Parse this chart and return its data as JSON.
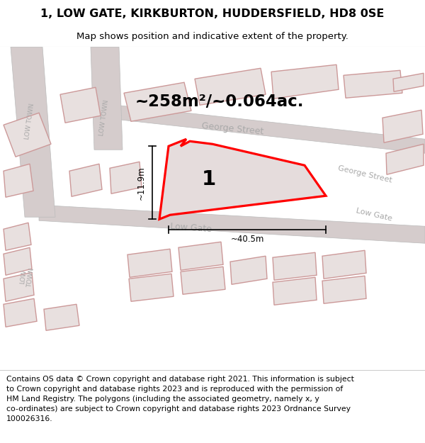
{
  "title": "1, LOW GATE, KIRKBURTON, HUDDERSFIELD, HD8 0SE",
  "subtitle": "Map shows position and indicative extent of the property.",
  "footer_line1": "Contains OS data © Crown copyright and database right 2021. This information is subject",
  "footer_line2": "to Crown copyright and database rights 2023 and is reproduced with the permission of",
  "footer_line3": "HM Land Registry. The polygons (including the associated geometry, namely x, y",
  "footer_line4": "co-ordinates) are subject to Crown copyright and database rights 2023 Ordnance Survey",
  "footer_line5": "100026316.",
  "area_label": "~258m²/~0.064ac.",
  "width_label": "~40.5m",
  "height_label": "~11.9m",
  "plot_label": "1",
  "title_fontsize": 11.5,
  "subtitle_fontsize": 9.5,
  "footer_fontsize": 7.8,
  "map_bg": "#f7f2f2",
  "road_color": "#d5cccc",
  "building_fill": "#e8e0df",
  "building_outline": "#cc9999",
  "plot_fill": "#e5dcdc",
  "plot_outline": "#ff0000",
  "street_color": "#aaaaaa"
}
